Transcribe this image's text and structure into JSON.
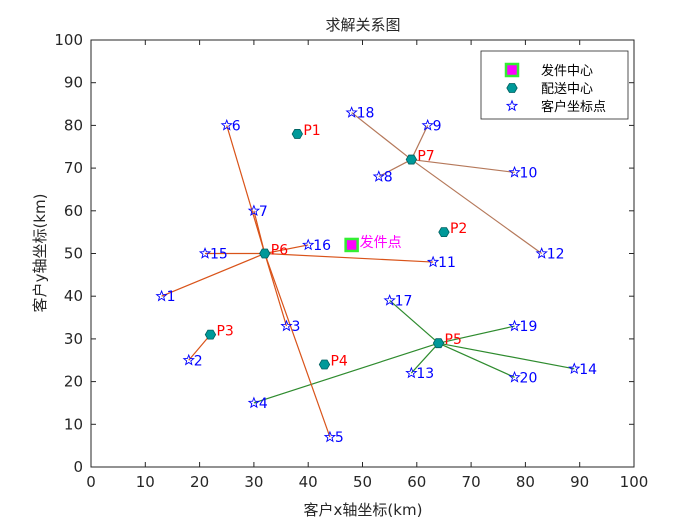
{
  "chart_data": {
    "type": "scatter",
    "title": "求解关系图",
    "xlabel": "客户x轴坐标(km)",
    "ylabel": "客户y轴坐标(km)",
    "xlim": [
      0,
      100
    ],
    "ylim": [
      0,
      100
    ],
    "xticks": [
      "0",
      "10",
      "20",
      "30",
      "40",
      "50",
      "60",
      "70",
      "80",
      "90",
      "100"
    ],
    "yticks": [
      "0",
      "10",
      "20",
      "30",
      "40",
      "50",
      "60",
      "70",
      "80",
      "90",
      "100"
    ],
    "grid": false,
    "legend_position": "top-right",
    "legend": [
      {
        "key": "dispatch",
        "label": "发件中心"
      },
      {
        "key": "center",
        "label": "配送中心"
      },
      {
        "key": "customer",
        "label": "客户坐标点"
      }
    ],
    "dispatch_point": {
      "label": "发件点",
      "x": 48,
      "y": 52
    },
    "centers": [
      {
        "label": "P1",
        "x": 38,
        "y": 78
      },
      {
        "label": "P2",
        "x": 65,
        "y": 55
      },
      {
        "label": "P3",
        "x": 22,
        "y": 31
      },
      {
        "label": "P4",
        "x": 43,
        "y": 24
      },
      {
        "label": "P5",
        "x": 64,
        "y": 29
      },
      {
        "label": "P6",
        "x": 32,
        "y": 50
      },
      {
        "label": "P7",
        "x": 59,
        "y": 72
      }
    ],
    "customers": [
      {
        "label": "1",
        "x": 13,
        "y": 40
      },
      {
        "label": "2",
        "x": 18,
        "y": 25
      },
      {
        "label": "3",
        "x": 36,
        "y": 33
      },
      {
        "label": "4",
        "x": 30,
        "y": 15
      },
      {
        "label": "5",
        "x": 44,
        "y": 7
      },
      {
        "label": "6",
        "x": 25,
        "y": 80
      },
      {
        "label": "7",
        "x": 30,
        "y": 60
      },
      {
        "label": "8",
        "x": 53,
        "y": 68
      },
      {
        "label": "9",
        "x": 62,
        "y": 80
      },
      {
        "label": "10",
        "x": 78,
        "y": 69
      },
      {
        "label": "11",
        "x": 63,
        "y": 48
      },
      {
        "label": "12",
        "x": 83,
        "y": 50
      },
      {
        "label": "13",
        "x": 59,
        "y": 22
      },
      {
        "label": "14",
        "x": 89,
        "y": 23
      },
      {
        "label": "15",
        "x": 21,
        "y": 50
      },
      {
        "label": "16",
        "x": 40,
        "y": 52
      },
      {
        "label": "17",
        "x": 55,
        "y": 39
      },
      {
        "label": "18",
        "x": 48,
        "y": 83
      },
      {
        "label": "19",
        "x": 78,
        "y": 33
      },
      {
        "label": "20",
        "x": 78,
        "y": 21
      }
    ],
    "links": [
      {
        "center": "P6",
        "customer": "1"
      },
      {
        "center": "P3",
        "customer": "2"
      },
      {
        "center": "P6",
        "customer": "3"
      },
      {
        "center": "P5",
        "customer": "4"
      },
      {
        "center": "P6",
        "customer": "5"
      },
      {
        "center": "P6",
        "customer": "6"
      },
      {
        "center": "P6",
        "customer": "7"
      },
      {
        "center": "P7",
        "customer": "8"
      },
      {
        "center": "P7",
        "customer": "9"
      },
      {
        "center": "P7",
        "customer": "10"
      },
      {
        "center": "P6",
        "customer": "11"
      },
      {
        "center": "P7",
        "customer": "12"
      },
      {
        "center": "P5",
        "customer": "13"
      },
      {
        "center": "P5",
        "customer": "14"
      },
      {
        "center": "P6",
        "customer": "15"
      },
      {
        "center": "P6",
        "customer": "16"
      },
      {
        "center": "P5",
        "customer": "17"
      },
      {
        "center": "P7",
        "customer": "18"
      },
      {
        "center": "P5",
        "customer": "19"
      },
      {
        "center": "P5",
        "customer": "20"
      }
    ],
    "colors": {
      "P3": "#d95319",
      "P5": "#2e8b2e",
      "P6": "#d95319",
      "P7": "#b5785a",
      "center_fill": "#009999",
      "center_label": "#ff0000",
      "customer_star": "#0000ff",
      "customer_label": "#0000ff",
      "dispatch_fill": "#ff00ff",
      "dispatch_edge": "#33ee33",
      "dispatch_label": "#ff00ff"
    }
  }
}
